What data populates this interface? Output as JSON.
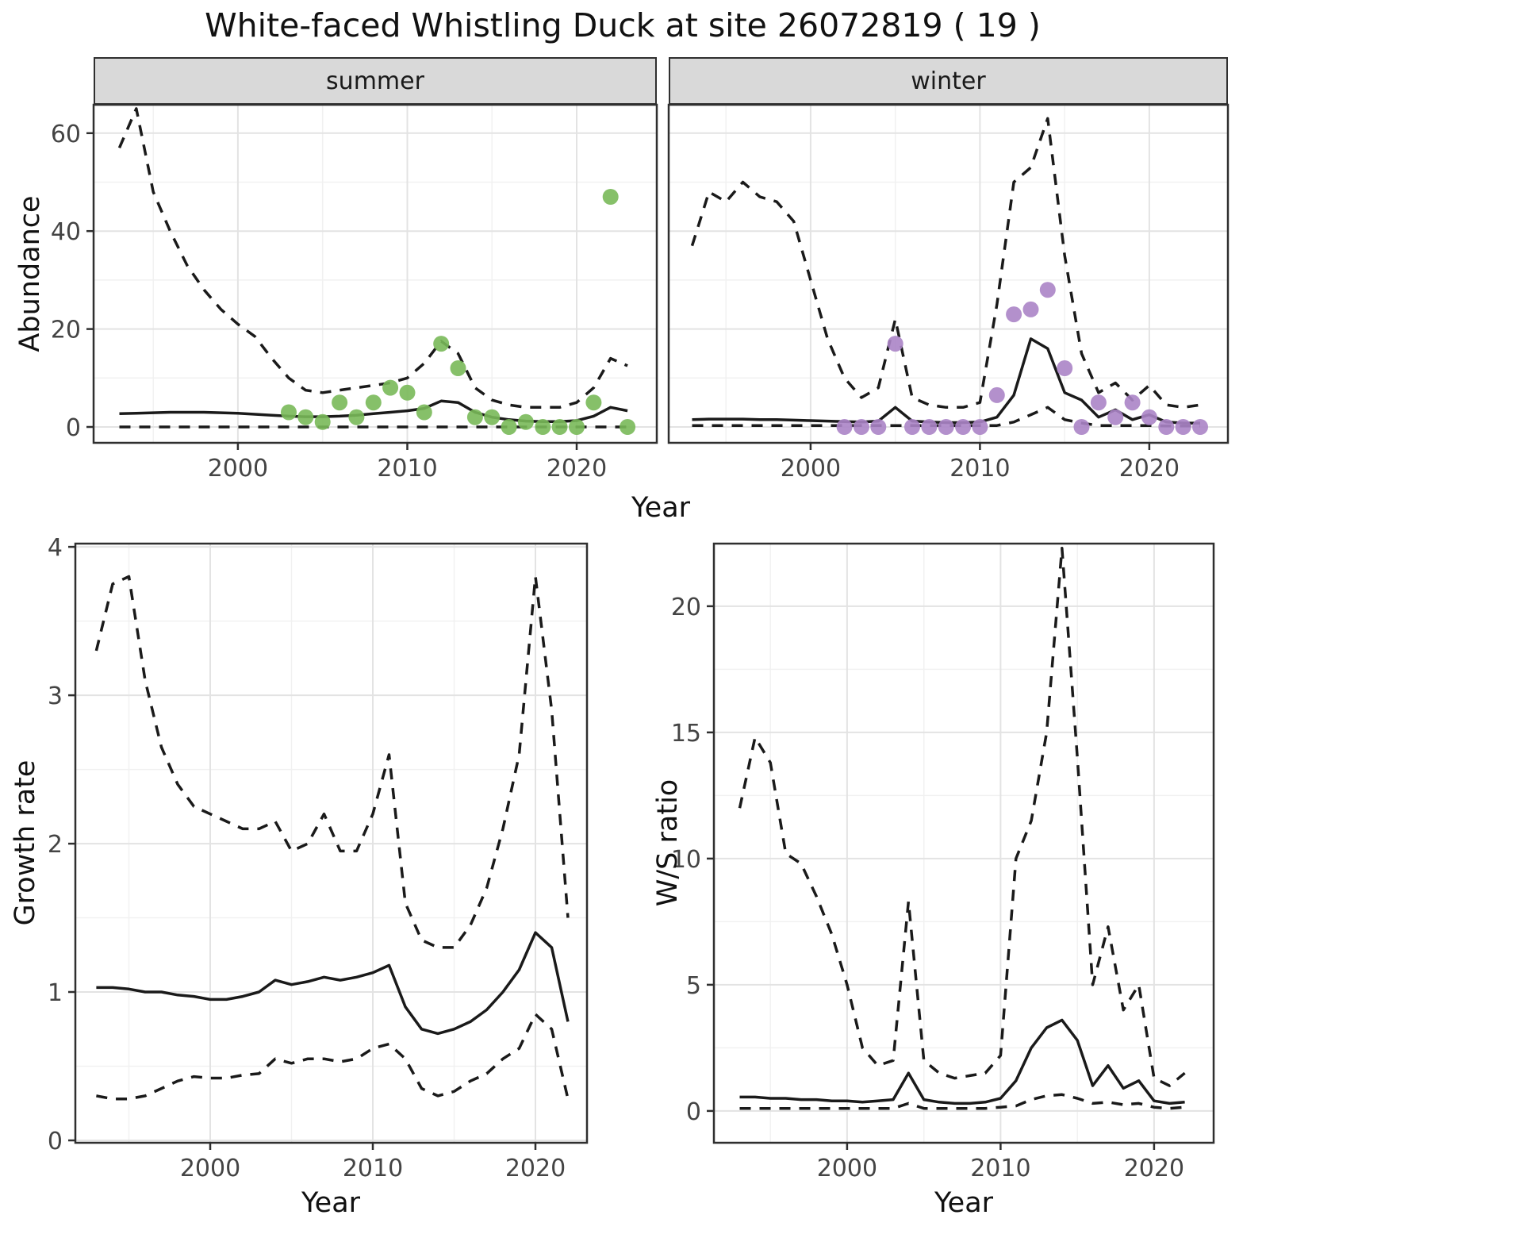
{
  "title": "White-faced Whistling Duck at site 26072819 ( 19 )",
  "colors": {
    "summer_points": "#79b959",
    "winter_points": "#ab84c6",
    "line": "#1a1a1a",
    "grid_major": "#e3e3e3",
    "grid_minor": "#f1f1f1",
    "panel_border": "#2f2f2f",
    "strip_bg": "#d9d9d9",
    "tick_label": "#444444"
  },
  "chart_data": [
    {
      "id": "abundance-summer",
      "type": "line",
      "facet_label": "summer",
      "xlabel": "Year",
      "ylabel": "Abundance",
      "xlim": [
        1991.48,
        2024.73
      ],
      "ylim": [
        -3.24,
        65.8
      ],
      "xticks": [
        2000,
        2010,
        2020
      ],
      "xtick_minor": [
        1995,
        2005,
        2015
      ],
      "yticks": [
        0,
        20,
        40,
        60
      ],
      "ytick_minor": [
        10,
        30,
        50
      ],
      "grid": true,
      "x": [
        1993,
        1994,
        1995,
        1996,
        1997,
        1998,
        1999,
        2000,
        2001,
        2002,
        2003,
        2004,
        2005,
        2006,
        2007,
        2008,
        2009,
        2010,
        2011,
        2012,
        2013,
        2014,
        2015,
        2016,
        2017,
        2018,
        2019,
        2020,
        2021,
        2022,
        2023
      ],
      "series": [
        {
          "name": "upper_95ci",
          "style": "dashed",
          "y": [
            57,
            65,
            48,
            40,
            33,
            28,
            24,
            21,
            18.5,
            14,
            10,
            7.5,
            7,
            7.5,
            8,
            8.5,
            9,
            10,
            13,
            17.5,
            15,
            8,
            5.5,
            4.5,
            4,
            4,
            4,
            5,
            8,
            14,
            12.5
          ]
        },
        {
          "name": "median",
          "style": "solid",
          "y": [
            2.7,
            2.8,
            2.9,
            3,
            3,
            3,
            2.9,
            2.8,
            2.6,
            2.4,
            2.2,
            2.1,
            2.1,
            2.2,
            2.4,
            2.7,
            3,
            3.3,
            3.8,
            5.3,
            5,
            3,
            2,
            1.5,
            1.2,
            1.1,
            1.1,
            1.3,
            2.2,
            4,
            3.3
          ]
        },
        {
          "name": "lower_95ci",
          "style": "dashed",
          "y": [
            0,
            0,
            0,
            0,
            0,
            0,
            0,
            0,
            0,
            0,
            0,
            0,
            0,
            0,
            0,
            0,
            0,
            0,
            0,
            0,
            0,
            0,
            0,
            0,
            0,
            0,
            0,
            0,
            0,
            0,
            0
          ]
        },
        {
          "name": "observed",
          "style": "points",
          "color": "#79b959",
          "x": [
            2003,
            2004,
            2005,
            2006,
            2007,
            2008,
            2009,
            2010,
            2011,
            2012,
            2013,
            2014,
            2015,
            2016,
            2017,
            2018,
            2019,
            2020,
            2021,
            2022,
            2023
          ],
          "y": [
            3,
            2,
            1,
            5,
            2,
            5,
            8,
            7,
            3,
            17,
            12,
            2,
            2,
            0,
            1,
            0,
            0,
            0,
            5,
            47,
            0
          ]
        }
      ]
    },
    {
      "id": "abundance-winter",
      "type": "line",
      "facet_label": "winter",
      "xlabel": "Year",
      "ylabel": "Abundance",
      "xlim": [
        1991.62,
        2024.64
      ],
      "ylim": [
        -3.24,
        65.8
      ],
      "xticks": [
        2000,
        2010,
        2020
      ],
      "xtick_minor": [
        1995,
        2005,
        2015
      ],
      "yticks": [
        0,
        20,
        40,
        60
      ],
      "ytick_minor": [
        10,
        30,
        50
      ],
      "grid": true,
      "x": [
        1993,
        1994,
        1995,
        1996,
        1997,
        1998,
        1999,
        2000,
        2001,
        2002,
        2003,
        2004,
        2005,
        2006,
        2007,
        2008,
        2009,
        2010,
        2011,
        2012,
        2013,
        2014,
        2015,
        2016,
        2017,
        2018,
        2019,
        2020,
        2021,
        2022,
        2023
      ],
      "series": [
        {
          "name": "upper_95ci",
          "style": "dashed",
          "y": [
            37,
            48,
            46,
            50,
            47,
            46,
            42,
            30,
            18,
            10,
            6,
            8,
            22,
            6,
            4.5,
            4,
            4,
            5,
            25,
            50,
            53,
            63,
            35,
            15,
            7,
            9,
            5.5,
            8.5,
            4.5,
            4,
            4.5
          ]
        },
        {
          "name": "median",
          "style": "solid",
          "y": [
            1.5,
            1.6,
            1.6,
            1.6,
            1.5,
            1.5,
            1.4,
            1.3,
            1.2,
            1.1,
            1,
            1.2,
            4,
            1.2,
            1,
            0.9,
            0.9,
            1,
            2,
            6.5,
            18,
            16,
            7,
            5.5,
            2,
            3.5,
            1.5,
            2.5,
            1,
            0.8,
            0.8
          ]
        },
        {
          "name": "lower_95ci",
          "style": "dashed",
          "y": [
            0.3,
            0.3,
            0.3,
            0.3,
            0.3,
            0.3,
            0.3,
            0.3,
            0.3,
            0.3,
            0.3,
            0.3,
            0.3,
            0.3,
            0.3,
            0.3,
            0.3,
            0.3,
            0.3,
            1,
            2.5,
            4,
            1.5,
            0.8,
            0.3,
            0.3,
            0.3,
            0.3,
            0.2,
            0.2,
            0.2
          ]
        },
        {
          "name": "observed",
          "style": "points",
          "color": "#ab84c6",
          "x": [
            2002,
            2003,
            2004,
            2005,
            2006,
            2007,
            2008,
            2009,
            2010,
            2011,
            2012,
            2013,
            2014,
            2015,
            2016,
            2017,
            2018,
            2019,
            2020,
            2021,
            2022,
            2023
          ],
          "y": [
            0,
            0,
            0,
            17,
            0,
            0,
            0,
            0,
            0,
            6.5,
            23,
            24,
            28,
            12,
            0,
            5,
            2,
            5,
            2,
            0,
            0,
            0
          ]
        }
      ]
    },
    {
      "id": "growth-rate",
      "type": "line",
      "facet_label": "",
      "xlabel": "Year",
      "ylabel": "Growth rate",
      "xlim": [
        1991.71,
        2023.17
      ],
      "ylim": [
        -0.016,
        4.022
      ],
      "xticks": [
        2000,
        2010,
        2020
      ],
      "xtick_minor": [
        1995,
        2005,
        2015
      ],
      "yticks": [
        0,
        1,
        2,
        3,
        4
      ],
      "ytick_minor": [
        0.5,
        1.5,
        2.5,
        3.5
      ],
      "grid": true,
      "x": [
        1993,
        1994,
        1995,
        1996,
        1997,
        1998,
        1999,
        2000,
        2001,
        2002,
        2003,
        2004,
        2005,
        2006,
        2007,
        2008,
        2009,
        2010,
        2011,
        2012,
        2013,
        2014,
        2015,
        2016,
        2017,
        2018,
        2019,
        2020,
        2021,
        2022
      ],
      "series": [
        {
          "name": "upper_95ci",
          "style": "dashed",
          "y": [
            3.3,
            3.75,
            3.8,
            3.1,
            2.65,
            2.4,
            2.25,
            2.2,
            2.15,
            2.1,
            2.1,
            2.15,
            1.95,
            2,
            2.2,
            1.95,
            1.95,
            2.2,
            2.6,
            1.6,
            1.35,
            1.3,
            1.3,
            1.45,
            1.7,
            2.1,
            2.6,
            3.8,
            2.9,
            1.5
          ]
        },
        {
          "name": "median",
          "style": "solid",
          "y": [
            1.03,
            1.03,
            1.02,
            1,
            1,
            0.98,
            0.97,
            0.95,
            0.95,
            0.97,
            1,
            1.08,
            1.05,
            1.07,
            1.1,
            1.08,
            1.1,
            1.13,
            1.18,
            0.9,
            0.75,
            0.72,
            0.75,
            0.8,
            0.88,
            1,
            1.15,
            1.4,
            1.3,
            0.8
          ]
        },
        {
          "name": "lower_95ci",
          "style": "dashed",
          "y": [
            0.3,
            0.28,
            0.28,
            0.3,
            0.35,
            0.4,
            0.43,
            0.42,
            0.42,
            0.44,
            0.45,
            0.55,
            0.52,
            0.55,
            0.55,
            0.53,
            0.55,
            0.62,
            0.65,
            0.55,
            0.35,
            0.3,
            0.33,
            0.4,
            0.45,
            0.55,
            0.62,
            0.85,
            0.75,
            0.28
          ]
        }
      ]
    },
    {
      "id": "ws-ratio",
      "type": "line",
      "facet_label": "",
      "xlabel": "Year",
      "ylabel": "W/S ratio",
      "xlim": [
        1991.32,
        2023.88
      ],
      "ylim": [
        -1.26,
        22.48
      ],
      "xticks": [
        2000,
        2010,
        2020
      ],
      "xtick_minor": [
        1995,
        2005,
        2015
      ],
      "yticks": [
        0,
        5,
        10,
        15,
        20
      ],
      "ytick_minor": [
        2.5,
        7.5,
        12.5,
        17.5
      ],
      "grid": true,
      "x": [
        1993,
        1994,
        1995,
        1996,
        1997,
        1998,
        1999,
        2000,
        2001,
        2002,
        2003,
        2004,
        2005,
        2006,
        2007,
        2008,
        2009,
        2010,
        2011,
        2012,
        2013,
        2014,
        2015,
        2016,
        2017,
        2018,
        2019,
        2020,
        2021,
        2022
      ],
      "series": [
        {
          "name": "upper_95ci",
          "style": "dashed",
          "y": [
            12,
            14.8,
            13.8,
            10.2,
            9.8,
            8.5,
            7,
            5,
            2.5,
            1.8,
            2,
            8.3,
            2,
            1.5,
            1.3,
            1.4,
            1.5,
            2.2,
            10,
            11.5,
            15,
            22.3,
            14,
            5,
            7.3,
            4,
            5,
            1.3,
            1,
            1.5
          ]
        },
        {
          "name": "median",
          "style": "solid",
          "y": [
            0.55,
            0.55,
            0.5,
            0.5,
            0.45,
            0.45,
            0.4,
            0.4,
            0.35,
            0.4,
            0.45,
            1.5,
            0.45,
            0.35,
            0.3,
            0.3,
            0.35,
            0.5,
            1.2,
            2.5,
            3.3,
            3.6,
            2.8,
            1,
            1.8,
            0.9,
            1.2,
            0.4,
            0.3,
            0.35
          ]
        },
        {
          "name": "lower_95ci",
          "style": "dashed",
          "y": [
            0.1,
            0.1,
            0.1,
            0.1,
            0.1,
            0.1,
            0.1,
            0.1,
            0.1,
            0.1,
            0.1,
            0.3,
            0.1,
            0.1,
            0.1,
            0.1,
            0.1,
            0.15,
            0.2,
            0.45,
            0.6,
            0.65,
            0.5,
            0.3,
            0.35,
            0.25,
            0.3,
            0.15,
            0.1,
            0.15
          ]
        }
      ]
    }
  ]
}
